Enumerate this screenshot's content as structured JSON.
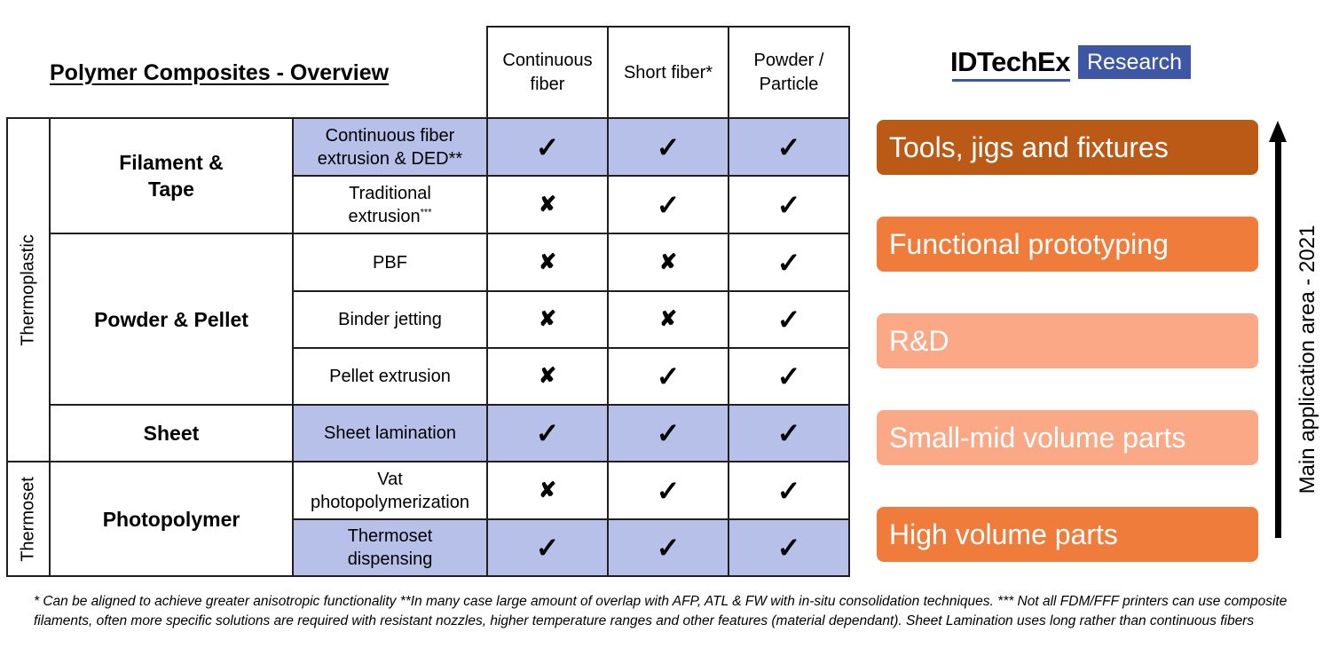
{
  "title": "Polymer Composites - Overview",
  "logo": {
    "brand": "IDTechEx",
    "tag": "Research",
    "brand_color": "#3e56a6"
  },
  "columns": [
    "Continuous fiber",
    "Short fiber*",
    "Powder / Particle"
  ],
  "columns_lines": [
    [
      "Continuous",
      "fiber"
    ],
    [
      "Short fiber*"
    ],
    [
      "Powder /",
      "Particle"
    ]
  ],
  "categories": [
    {
      "label": "Thermoplastic"
    },
    {
      "label": "Thermoset"
    }
  ],
  "groups": [
    {
      "label_lines": [
        "Filament &",
        "Tape"
      ],
      "label": "Filament & Tape"
    },
    {
      "label": "Powder & Pellet"
    },
    {
      "label": "Sheet"
    },
    {
      "label": "Photopolymer"
    }
  ],
  "rows": [
    {
      "process_lines": [
        "Continuous fiber",
        "extrusion & DED**"
      ],
      "shaded": true,
      "values": [
        "check",
        "check",
        "check"
      ]
    },
    {
      "process_lines": [
        "Traditional",
        "extrusion"
      ],
      "process_sup": "***",
      "shaded": false,
      "values": [
        "cross",
        "check",
        "check"
      ]
    },
    {
      "process": "PBF",
      "shaded": false,
      "values": [
        "cross",
        "cross",
        "check"
      ]
    },
    {
      "process": "Binder jetting",
      "shaded": false,
      "values": [
        "cross",
        "cross",
        "check"
      ]
    },
    {
      "process": "Pellet extrusion",
      "shaded": false,
      "values": [
        "cross",
        "check",
        "check"
      ]
    },
    {
      "process": "Sheet lamination",
      "shaded": true,
      "values": [
        "check",
        "check",
        "check"
      ]
    },
    {
      "process_lines": [
        "Vat",
        "photopolymerization"
      ],
      "shaded": false,
      "values": [
        "cross",
        "check",
        "check"
      ]
    },
    {
      "process_lines": [
        "Thermoset",
        "dispensing"
      ],
      "shaded": true,
      "values": [
        "check",
        "check",
        "check"
      ]
    }
  ],
  "symbols": {
    "check": "✓",
    "cross": "✘"
  },
  "colors": {
    "shade": "#b7c0e8",
    "border": "#1f1f1f"
  },
  "applications": [
    {
      "label": "Tools, jigs and fixtures",
      "color": "#bb5a16"
    },
    {
      "label": "Functional prototyping",
      "color": "#f07c3c"
    },
    {
      "label": "R&D",
      "color": "#fba887"
    },
    {
      "label": "Small-mid volume parts",
      "color": "#fba887"
    },
    {
      "label": "High volume parts",
      "color": "#f07c3c"
    }
  ],
  "axis_label": "Main application area - 2021",
  "footnote": "* Can be aligned to achieve greater anisotropic functionality **In many case large amount of overlap with AFP, ATL & FW with in-situ consolidation techniques. *** Not all FDM/FFF printers can use composite filaments, often more specific solutions are required with resistant nozzles, higher temperature ranges and other features (material dependant). Sheet Lamination uses long rather than continuous fibers"
}
